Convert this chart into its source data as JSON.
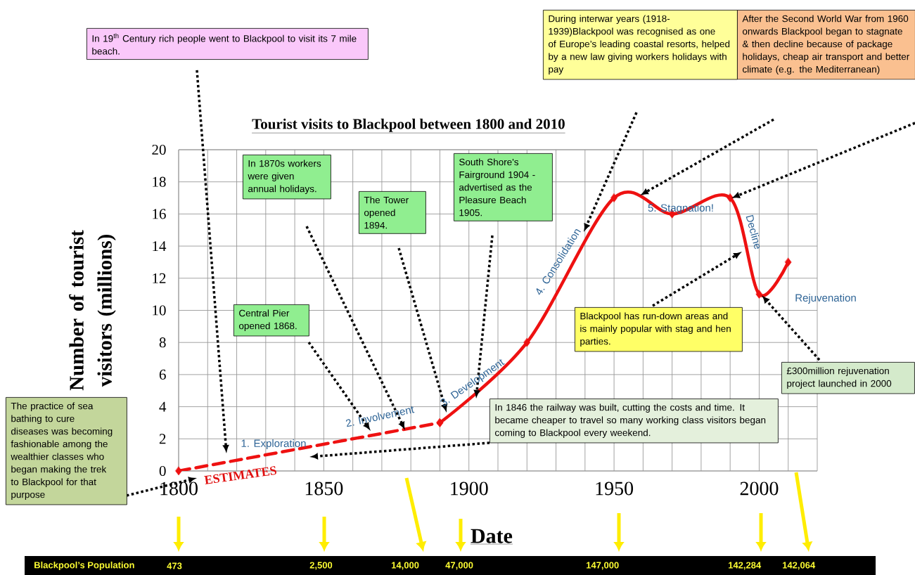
{
  "chart_data": {
    "type": "line",
    "title": "Tourist visits to Blackpool between 1800 and 2010",
    "xlabel": "Date",
    "ylabel": "Number of tourist visitors (millions)",
    "series": [
      {
        "color": "#ee1111",
        "line_style": "dashed",
        "x": [
          1800,
          1890
        ],
        "values": [
          0,
          3
        ]
      },
      {
        "color": "#ee1111",
        "line_style": "solid",
        "x": [
          1890,
          1920,
          1950,
          1970,
          1990,
          2000,
          2010
        ],
        "values": [
          3,
          8,
          17,
          16,
          17,
          11,
          13
        ]
      }
    ],
    "xlim": [
      1800,
      2020
    ],
    "ylim": [
      0,
      20
    ],
    "xticks": [
      1800,
      {
        "value": 1810,
        "label": null
      },
      {
        "value": 1820,
        "label": null
      },
      {
        "value": 1830,
        "label": null
      },
      {
        "value": 1840,
        "label": null
      },
      1850,
      {
        "value": 1860,
        "label": null
      },
      {
        "value": 1870,
        "label": null
      },
      {
        "value": 1880,
        "label": null
      },
      {
        "value": 1890,
        "label": null
      },
      1900,
      {
        "value": 1910,
        "label": null
      },
      {
        "value": 1920,
        "label": null
      },
      {
        "value": 1930,
        "label": null
      },
      {
        "value": 1940,
        "label": null
      },
      1950,
      {
        "value": 1960,
        "label": null
      },
      {
        "value": 1970,
        "label": null
      },
      {
        "value": 1980,
        "label": null
      },
      {
        "value": 1990,
        "label": null
      },
      2000,
      {
        "value": 2010,
        "label": null
      }
    ],
    "yticks": [
      0,
      2,
      4,
      6,
      8,
      10,
      12,
      14,
      16,
      18,
      20
    ],
    "grid": true,
    "marker": "diamond",
    "annotations": [
      "In 19$^{th}$ Century rich people went to Blackpool to visit its 7 mile beach.",
      "In 1870s workers were given annual holidays.",
      "The Tower opened 1894.",
      "South Shore's Fairground 1904 - advertised as the Pleasure Beach 1905.",
      "Central Pier opened 1868.",
      "During interwar years (1918-1939)Blackpool was recognised as one of Europe’s leading coastal resorts, helped by a new law giving workers holidays with pay",
      "After the Second World War from 1960 onwards Blackpool began to stagnate & then decline because of package holidays, cheap air transport and better climate (e.g. the Mediterranean)",
      "Blackpool has run-down areas and is mainly popular with stag and hen parties.",
      "£300million rejuvenation project launched in 2000",
      "In 1846 the railway was built, cutting the costs and time.  It became cheaper to travel so many working class visitors began coming to Blackpool every weekend.",
      "The practice of sea bathing to cure diseases was becoming fashionable among the wealthier classes who began making the trek to Blackpool for that purpose",
      "Blackpool’s Population",
      "473",
      "2,500",
      "14,000",
      "47,000",
      "147,000",
      "142,284",
      "142,064",
      "1. Exploration",
      "2. Involvement",
      "3. Development",
      "4. Consolidation",
      "5. Stagnation!",
      "Decline",
      "Rejuvenation",
      "ESTIMATES"
    ]
  }
}
